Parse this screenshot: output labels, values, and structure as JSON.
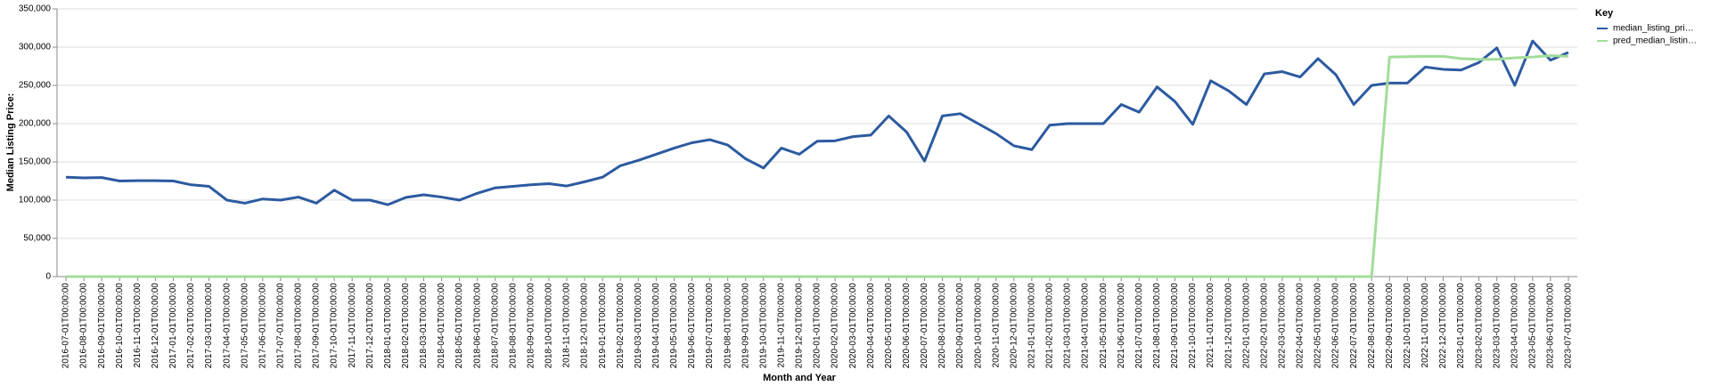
{
  "chart_data": {
    "type": "line",
    "x_label": "Month and Year",
    "y_label": "Median Listing Price:",
    "legend_title": "Key",
    "legend": "top-right",
    "grid": true,
    "categories": [
      "2016-07-01T00:00:00",
      "2016-08-01T00:00:00",
      "2016-09-01T00:00:00",
      "2016-10-01T00:00:00",
      "2016-11-01T00:00:00",
      "2016-12-01T00:00:00",
      "2017-01-01T00:00:00",
      "2017-02-01T00:00:00",
      "2017-03-01T00:00:00",
      "2017-04-01T00:00:00",
      "2017-05-01T00:00:00",
      "2017-06-01T00:00:00",
      "2017-07-01T00:00:00",
      "2017-08-01T00:00:00",
      "2017-09-01T00:00:00",
      "2017-10-01T00:00:00",
      "2017-11-01T00:00:00",
      "2017-12-01T00:00:00",
      "2018-01-01T00:00:00",
      "2018-02-01T00:00:00",
      "2018-03-01T00:00:00",
      "2018-04-01T00:00:00",
      "2018-05-01T00:00:00",
      "2018-06-01T00:00:00",
      "2018-07-01T00:00:00",
      "2018-08-01T00:00:00",
      "2018-09-01T00:00:00",
      "2018-10-01T00:00:00",
      "2018-11-01T00:00:00",
      "2018-12-01T00:00:00",
      "2019-01-01T00:00:00",
      "2019-02-01T00:00:00",
      "2019-03-01T00:00:00",
      "2019-04-01T00:00:00",
      "2019-05-01T00:00:00",
      "2019-06-01T00:00:00",
      "2019-07-01T00:00:00",
      "2019-08-01T00:00:00",
      "2019-09-01T00:00:00",
      "2019-10-01T00:00:00",
      "2019-11-01T00:00:00",
      "2019-12-01T00:00:00",
      "2020-01-01T00:00:00",
      "2020-02-01T00:00:00",
      "2020-03-01T00:00:00",
      "2020-04-01T00:00:00",
      "2020-05-01T00:00:00",
      "2020-06-01T00:00:00",
      "2020-07-01T00:00:00",
      "2020-08-01T00:00:00",
      "2020-09-01T00:00:00",
      "2020-10-01T00:00:00",
      "2020-11-01T00:00:00",
      "2020-12-01T00:00:00",
      "2021-01-01T00:00:00",
      "2021-02-01T00:00:00",
      "2021-03-01T00:00:00",
      "2021-04-01T00:00:00",
      "2021-05-01T00:00:00",
      "2021-06-01T00:00:00",
      "2021-07-01T00:00:00",
      "2021-08-01T00:00:00",
      "2021-09-01T00:00:00",
      "2021-10-01T00:00:00",
      "2021-11-01T00:00:00",
      "2021-12-01T00:00:00",
      "2022-01-01T00:00:00",
      "2022-02-01T00:00:00",
      "2022-03-01T00:00:00",
      "2022-04-01T00:00:00",
      "2022-05-01T00:00:00",
      "2022-06-01T00:00:00",
      "2022-07-01T00:00:00",
      "2022-08-01T00:00:00",
      "2022-09-01T00:00:00",
      "2022-10-01T00:00:00",
      "2022-11-01T00:00:00",
      "2022-12-01T00:00:00",
      "2023-01-01T00:00:00",
      "2023-02-01T00:00:00",
      "2023-03-01T00:00:00",
      "2023-04-01T00:00:00",
      "2023-05-01T00:00:00",
      "2023-06-01T00:00:00",
      "2023-07-01T00:00:00"
    ],
    "series": [
      {
        "name": "median_listing_pri…",
        "color": "#2c5aa0",
        "values": [
          130000,
          129000,
          129500,
          125000,
          125500,
          125500,
          125000,
          120000,
          118000,
          100000,
          96000,
          101500,
          100000,
          104000,
          96000,
          113000,
          100000,
          100000,
          94000,
          103500,
          107000,
          104000,
          100000,
          109000,
          116000,
          118000,
          120000,
          121500,
          118500,
          124000,
          130000,
          145000,
          152000,
          160000,
          168000,
          175000,
          179000,
          172000,
          154000,
          142000,
          168000,
          160000,
          177000,
          177500,
          183000,
          185000,
          210000,
          189000,
          151000,
          210000,
          213000,
          200000,
          187000,
          171000,
          166000,
          198000,
          200000,
          200000,
          200000,
          225000,
          215000,
          248000,
          229000,
          199000,
          256000,
          243000,
          225000,
          265000,
          268000,
          261000,
          285000,
          264000,
          225000,
          250000,
          253000,
          253000,
          274000,
          271000,
          270000,
          280000,
          299000,
          250000,
          308000,
          283000,
          293000
        ]
      },
      {
        "name": "pred_median_listin…",
        "color": "#a3dc9a",
        "values": [
          0,
          0,
          0,
          0,
          0,
          0,
          0,
          0,
          0,
          0,
          0,
          0,
          0,
          0,
          0,
          0,
          0,
          0,
          0,
          0,
          0,
          0,
          0,
          0,
          0,
          0,
          0,
          0,
          0,
          0,
          0,
          0,
          0,
          0,
          0,
          0,
          0,
          0,
          0,
          0,
          0,
          0,
          0,
          0,
          0,
          0,
          0,
          0,
          0,
          0,
          0,
          0,
          0,
          0,
          0,
          0,
          0,
          0,
          0,
          0,
          0,
          0,
          0,
          0,
          0,
          0,
          0,
          0,
          0,
          0,
          0,
          0,
          0,
          0,
          287000,
          287500,
          288000,
          288000,
          285000,
          284000,
          284000,
          286000,
          287000,
          289000,
          288000
        ]
      }
    ],
    "ylim": [
      0,
      350000
    ],
    "yticks": [
      0,
      {
        "value": 50000,
        "label": "50,000"
      },
      {
        "value": 100000,
        "label": "100,000"
      },
      {
        "value": 150000,
        "label": "150,000"
      },
      {
        "value": 200000,
        "label": "200,000"
      },
      {
        "value": 250000,
        "label": "250,000"
      },
      {
        "value": 300000,
        "label": "300,000"
      },
      {
        "value": 350000,
        "label": "350,000"
      }
    ]
  }
}
